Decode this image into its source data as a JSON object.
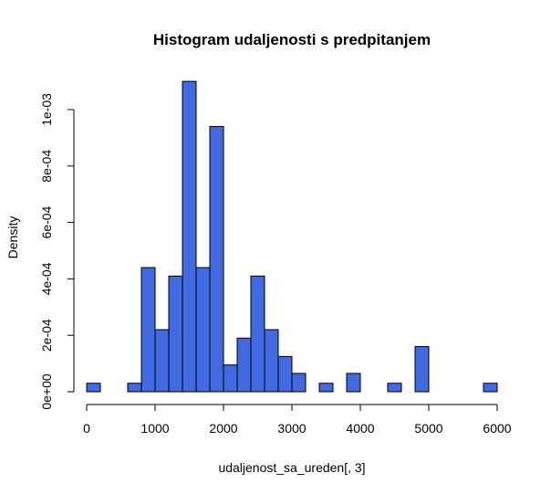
{
  "chart_data": {
    "type": "histogram",
    "title": "Histogram udaljenosti s predpitanjem",
    "xlabel": "udaljenost_sa_ureden[, 3]",
    "ylabel": "Density",
    "bar_color": "#4169E1",
    "xlim": [
      0,
      6000
    ],
    "ylim": [
      0,
      0.001
    ],
    "x_ticks": [
      0,
      1000,
      2000,
      3000,
      4000,
      5000,
      6000
    ],
    "x_tick_labels": [
      "0",
      "1000",
      "2000",
      "3000",
      "4000",
      "5000",
      "6000"
    ],
    "y_ticks": [
      0,
      0.0002,
      0.0004,
      0.0006,
      0.0008,
      0.001
    ],
    "y_tick_labels": [
      "0e+00",
      "2e-04",
      "4e-04",
      "6e-04",
      "8e-04",
      "1e-03"
    ],
    "bin_width": 200,
    "bins": [
      {
        "start": 0,
        "end": 200,
        "density": 3e-05
      },
      {
        "start": 600,
        "end": 800,
        "density": 3e-05
      },
      {
        "start": 800,
        "end": 1000,
        "density": 0.00044
      },
      {
        "start": 1000,
        "end": 1200,
        "density": 0.00022
      },
      {
        "start": 1200,
        "end": 1400,
        "density": 0.00041
      },
      {
        "start": 1400,
        "end": 1600,
        "density": 0.0011
      },
      {
        "start": 1600,
        "end": 1800,
        "density": 0.00044
      },
      {
        "start": 1800,
        "end": 2000,
        "density": 0.00094
      },
      {
        "start": 2000,
        "end": 2200,
        "density": 9.5e-05
      },
      {
        "start": 2200,
        "end": 2400,
        "density": 0.00019
      },
      {
        "start": 2400,
        "end": 2600,
        "density": 0.00041
      },
      {
        "start": 2600,
        "end": 2800,
        "density": 0.00022
      },
      {
        "start": 2800,
        "end": 3000,
        "density": 0.000125
      },
      {
        "start": 3000,
        "end": 3200,
        "density": 6.5e-05
      },
      {
        "start": 3400,
        "end": 3600,
        "density": 3e-05
      },
      {
        "start": 3800,
        "end": 4000,
        "density": 6.5e-05
      },
      {
        "start": 4400,
        "end": 4600,
        "density": 3e-05
      },
      {
        "start": 4800,
        "end": 5000,
        "density": 0.00016
      },
      {
        "start": 5800,
        "end": 6000,
        "density": 3e-05
      }
    ]
  }
}
